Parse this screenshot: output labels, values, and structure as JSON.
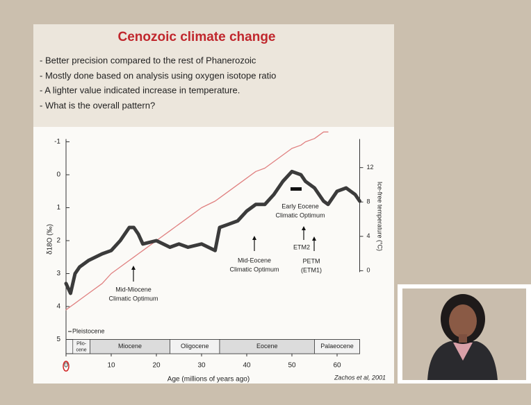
{
  "slide": {
    "title": "Cenozoic climate change",
    "bullets": [
      "- Better precision compared to the rest of Phanerozoic",
      "- Mostly done based on analysis using oxygen isotope ratio",
      "- A lighter value indicated increase in temperature.",
      "- What is the overall pattern?"
    ],
    "credit": "Zachos et al, 2001"
  },
  "chart_data": {
    "type": "line",
    "x_label": "Age (millions of years ago)",
    "y_label": "δ18O (‰)",
    "y2_label": "Ice-free temperature (°C)",
    "x": [
      0,
      1,
      2,
      3,
      5,
      8,
      10,
      12,
      14,
      15,
      16,
      17,
      20,
      23,
      25,
      27,
      30,
      33,
      34,
      36,
      38,
      40,
      42,
      44,
      46,
      48,
      50,
      52,
      53,
      55,
      57,
      58,
      60,
      62,
      64,
      65
    ],
    "series": [
      {
        "color": "#3b3b3b",
        "values": [
          3.3,
          3.6,
          3.0,
          2.8,
          2.6,
          2.4,
          2.3,
          2.0,
          1.6,
          1.6,
          1.8,
          2.1,
          2.0,
          2.2,
          2.1,
          2.2,
          2.1,
          2.3,
          1.6,
          1.5,
          1.4,
          1.1,
          0.9,
          0.9,
          0.6,
          0.2,
          -0.1,
          0.0,
          0.2,
          0.4,
          0.8,
          0.9,
          0.5,
          0.4,
          0.6,
          0.8
        ]
      },
      {
        "color": "#e08080",
        "values": [
          4.1,
          4.0,
          3.9,
          3.8,
          3.6,
          3.3,
          3.0,
          2.8,
          2.6,
          2.5,
          2.4,
          2.3,
          2.0,
          1.7,
          1.5,
          1.3,
          1.0,
          0.8,
          0.7,
          0.5,
          0.3,
          0.1,
          -0.1,
          -0.2,
          -0.4,
          -0.6,
          -0.8,
          -0.9,
          -1.0,
          -1.1,
          -1.3,
          -1.3,
          null,
          null,
          null,
          null
        ]
      }
    ],
    "xlim": [
      0,
      65
    ],
    "xticks": [
      0,
      10,
      20,
      30,
      40,
      50,
      60
    ],
    "ylim": [
      -1,
      5
    ],
    "y_inverted": true,
    "yticks": [
      -1,
      0,
      1,
      2,
      3,
      4,
      5
    ],
    "y2lim": [
      -8,
      15
    ],
    "y2ticks": [
      0,
      4,
      8,
      12
    ],
    "epochs": [
      {
        "label": "Plio- cene",
        "start": 1.5,
        "end": 5.3
      },
      {
        "label": "Miocene",
        "start": 5.3,
        "end": 23
      },
      {
        "label": "Oligocene",
        "start": 23,
        "end": 34
      },
      {
        "label": "Eocene",
        "start": 34,
        "end": 55
      },
      {
        "label": "Palaeocene",
        "start": 55,
        "end": 65
      }
    ],
    "annotations": [
      [
        "Pleistocene"
      ],
      [
        "Mid-Miocene",
        "Climatic Optimum"
      ],
      [
        "Mid-Eocene",
        "Climatic Optimum"
      ],
      [
        "Early Eocene",
        "Climatic Optimum"
      ],
      [
        "ETM2"
      ],
      [
        "PETM",
        "(ETM1)"
      ]
    ]
  }
}
